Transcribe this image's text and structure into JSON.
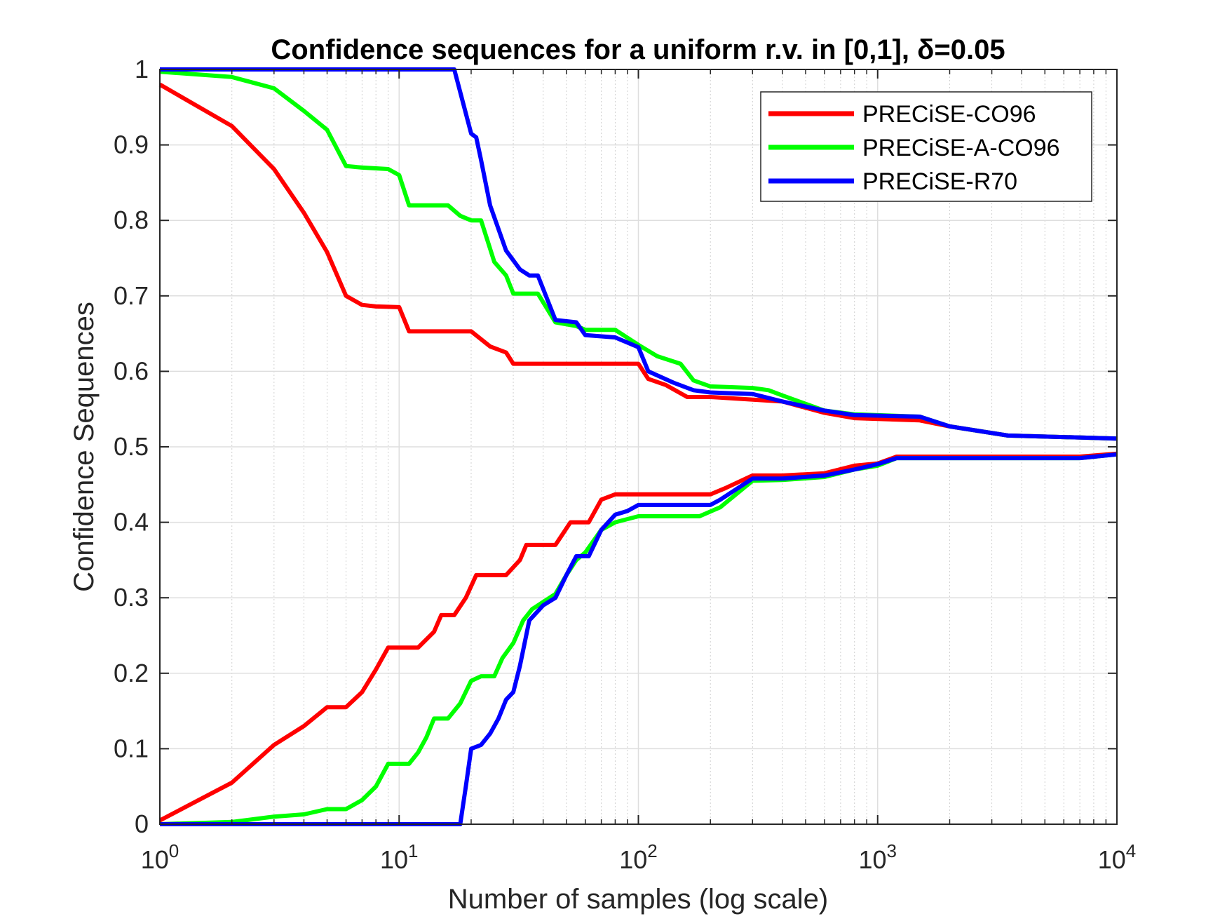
{
  "chart_data": {
    "type": "line",
    "title": "Confidence sequences for a uniform r.v. in [0,1], δ=0.05",
    "xlabel": "Number of samples (log scale)",
    "ylabel": "Confidence Sequences",
    "xscale": "log",
    "xlim": [
      1,
      10000
    ],
    "ylim": [
      0,
      1
    ],
    "xticks": [
      1,
      10,
      100,
      1000,
      10000
    ],
    "xtick_labels": [
      {
        "base": "10",
        "exp": "0"
      },
      {
        "base": "10",
        "exp": "1"
      },
      {
        "base": "10",
        "exp": "2"
      },
      {
        "base": "10",
        "exp": "3"
      },
      {
        "base": "10",
        "exp": "4"
      }
    ],
    "yticks": [
      0,
      0.1,
      0.2,
      0.3,
      0.4,
      0.5,
      0.6,
      0.7,
      0.8,
      0.9,
      1
    ],
    "ytick_labels": [
      "0",
      "0.1",
      "0.2",
      "0.3",
      "0.4",
      "0.5",
      "0.6",
      "0.7",
      "0.8",
      "0.9",
      "1"
    ],
    "grid": true,
    "minor_grid": true,
    "legend_position": "top-right",
    "series": [
      {
        "name": "PRECiSE-CO96",
        "color": "#ff0000",
        "upper": [
          [
            1,
            0.98
          ],
          [
            2,
            0.925
          ],
          [
            3,
            0.868
          ],
          [
            4,
            0.81
          ],
          [
            5,
            0.758
          ],
          [
            6,
            0.7
          ],
          [
            7,
            0.688
          ],
          [
            8,
            0.686
          ],
          [
            10,
            0.685
          ],
          [
            11,
            0.653
          ],
          [
            20,
            0.653
          ],
          [
            24,
            0.633
          ],
          [
            28,
            0.625
          ],
          [
            30,
            0.61
          ],
          [
            100,
            0.61
          ],
          [
            110,
            0.59
          ],
          [
            130,
            0.582
          ],
          [
            160,
            0.566
          ],
          [
            200,
            0.566
          ],
          [
            400,
            0.56
          ],
          [
            600,
            0.545
          ],
          [
            800,
            0.538
          ],
          [
            1500,
            0.535
          ],
          [
            2000,
            0.527
          ],
          [
            3500,
            0.515
          ],
          [
            10000,
            0.511
          ]
        ],
        "lower": [
          [
            1,
            0.005
          ],
          [
            2,
            0.055
          ],
          [
            3,
            0.105
          ],
          [
            4,
            0.13
          ],
          [
            5,
            0.155
          ],
          [
            6,
            0.155
          ],
          [
            7,
            0.175
          ],
          [
            8,
            0.205
          ],
          [
            9,
            0.234
          ],
          [
            12,
            0.234
          ],
          [
            14,
            0.255
          ],
          [
            15,
            0.277
          ],
          [
            17,
            0.277
          ],
          [
            19,
            0.3
          ],
          [
            21,
            0.33
          ],
          [
            28,
            0.33
          ],
          [
            32,
            0.35
          ],
          [
            34,
            0.37
          ],
          [
            45,
            0.37
          ],
          [
            52,
            0.4
          ],
          [
            62,
            0.4
          ],
          [
            70,
            0.43
          ],
          [
            80,
            0.437
          ],
          [
            200,
            0.437
          ],
          [
            230,
            0.445
          ],
          [
            300,
            0.462
          ],
          [
            400,
            0.462
          ],
          [
            600,
            0.465
          ],
          [
            800,
            0.475
          ],
          [
            1000,
            0.478
          ],
          [
            1200,
            0.487
          ],
          [
            7000,
            0.487
          ],
          [
            10000,
            0.491
          ]
        ]
      },
      {
        "name": "PRECiSE-A-CO96",
        "color": "#00ff00",
        "upper": [
          [
            1,
            0.997
          ],
          [
            2,
            0.99
          ],
          [
            3,
            0.975
          ],
          [
            4,
            0.945
          ],
          [
            5,
            0.92
          ],
          [
            6,
            0.872
          ],
          [
            7,
            0.87
          ],
          [
            9,
            0.868
          ],
          [
            10,
            0.86
          ],
          [
            11,
            0.82
          ],
          [
            16,
            0.82
          ],
          [
            18,
            0.806
          ],
          [
            20,
            0.8
          ],
          [
            22,
            0.8
          ],
          [
            25,
            0.745
          ],
          [
            28,
            0.727
          ],
          [
            30,
            0.703
          ],
          [
            38,
            0.703
          ],
          [
            45,
            0.665
          ],
          [
            55,
            0.66
          ],
          [
            60,
            0.655
          ],
          [
            80,
            0.655
          ],
          [
            100,
            0.635
          ],
          [
            120,
            0.62
          ],
          [
            150,
            0.61
          ],
          [
            170,
            0.588
          ],
          [
            200,
            0.58
          ],
          [
            300,
            0.578
          ],
          [
            350,
            0.575
          ],
          [
            400,
            0.568
          ],
          [
            600,
            0.548
          ],
          [
            800,
            0.543
          ],
          [
            1500,
            0.54
          ],
          [
            2000,
            0.527
          ],
          [
            3500,
            0.515
          ],
          [
            10000,
            0.511
          ]
        ],
        "lower": [
          [
            1,
            0.0
          ],
          [
            2,
            0.003
          ],
          [
            3,
            0.01
          ],
          [
            4,
            0.013
          ],
          [
            5,
            0.02
          ],
          [
            6,
            0.02
          ],
          [
            7,
            0.032
          ],
          [
            8,
            0.05
          ],
          [
            9,
            0.08
          ],
          [
            11,
            0.08
          ],
          [
            12,
            0.095
          ],
          [
            13,
            0.115
          ],
          [
            14,
            0.14
          ],
          [
            16,
            0.14
          ],
          [
            18,
            0.16
          ],
          [
            20,
            0.19
          ],
          [
            22,
            0.196
          ],
          [
            25,
            0.196
          ],
          [
            27,
            0.22
          ],
          [
            30,
            0.24
          ],
          [
            33,
            0.27
          ],
          [
            36,
            0.285
          ],
          [
            45,
            0.305
          ],
          [
            50,
            0.33
          ],
          [
            55,
            0.35
          ],
          [
            60,
            0.36
          ],
          [
            70,
            0.39
          ],
          [
            80,
            0.4
          ],
          [
            100,
            0.408
          ],
          [
            180,
            0.408
          ],
          [
            220,
            0.42
          ],
          [
            300,
            0.455
          ],
          [
            400,
            0.456
          ],
          [
            600,
            0.46
          ],
          [
            800,
            0.47
          ],
          [
            1000,
            0.475
          ],
          [
            1200,
            0.485
          ],
          [
            7000,
            0.485
          ],
          [
            10000,
            0.49
          ]
        ]
      },
      {
        "name": "PRECiSE-R70",
        "color": "#0000ff",
        "upper": [
          [
            1,
            1.0
          ],
          [
            17,
            1.0
          ],
          [
            18,
            0.97
          ],
          [
            20,
            0.915
          ],
          [
            21,
            0.91
          ],
          [
            22,
            0.88
          ],
          [
            24,
            0.82
          ],
          [
            28,
            0.76
          ],
          [
            32,
            0.735
          ],
          [
            35,
            0.727
          ],
          [
            38,
            0.727
          ],
          [
            45,
            0.668
          ],
          [
            55,
            0.665
          ],
          [
            60,
            0.648
          ],
          [
            80,
            0.645
          ],
          [
            100,
            0.632
          ],
          [
            110,
            0.6
          ],
          [
            140,
            0.585
          ],
          [
            170,
            0.575
          ],
          [
            200,
            0.572
          ],
          [
            300,
            0.57
          ],
          [
            400,
            0.56
          ],
          [
            600,
            0.548
          ],
          [
            800,
            0.542
          ],
          [
            1500,
            0.54
          ],
          [
            2000,
            0.527
          ],
          [
            3500,
            0.515
          ],
          [
            10000,
            0.511
          ]
        ],
        "lower": [
          [
            1,
            0.0
          ],
          [
            18,
            0.0
          ],
          [
            19,
            0.05
          ],
          [
            20,
            0.1
          ],
          [
            22,
            0.105
          ],
          [
            24,
            0.12
          ],
          [
            26,
            0.14
          ],
          [
            28,
            0.165
          ],
          [
            30,
            0.175
          ],
          [
            32,
            0.21
          ],
          [
            35,
            0.27
          ],
          [
            40,
            0.29
          ],
          [
            45,
            0.3
          ],
          [
            50,
            0.33
          ],
          [
            55,
            0.355
          ],
          [
            62,
            0.355
          ],
          [
            70,
            0.39
          ],
          [
            80,
            0.41
          ],
          [
            90,
            0.415
          ],
          [
            100,
            0.423
          ],
          [
            200,
            0.423
          ],
          [
            220,
            0.43
          ],
          [
            300,
            0.458
          ],
          [
            400,
            0.458
          ],
          [
            600,
            0.462
          ],
          [
            800,
            0.47
          ],
          [
            1000,
            0.477
          ],
          [
            1200,
            0.485
          ],
          [
            7000,
            0.485
          ],
          [
            10000,
            0.49
          ]
        ]
      }
    ]
  }
}
